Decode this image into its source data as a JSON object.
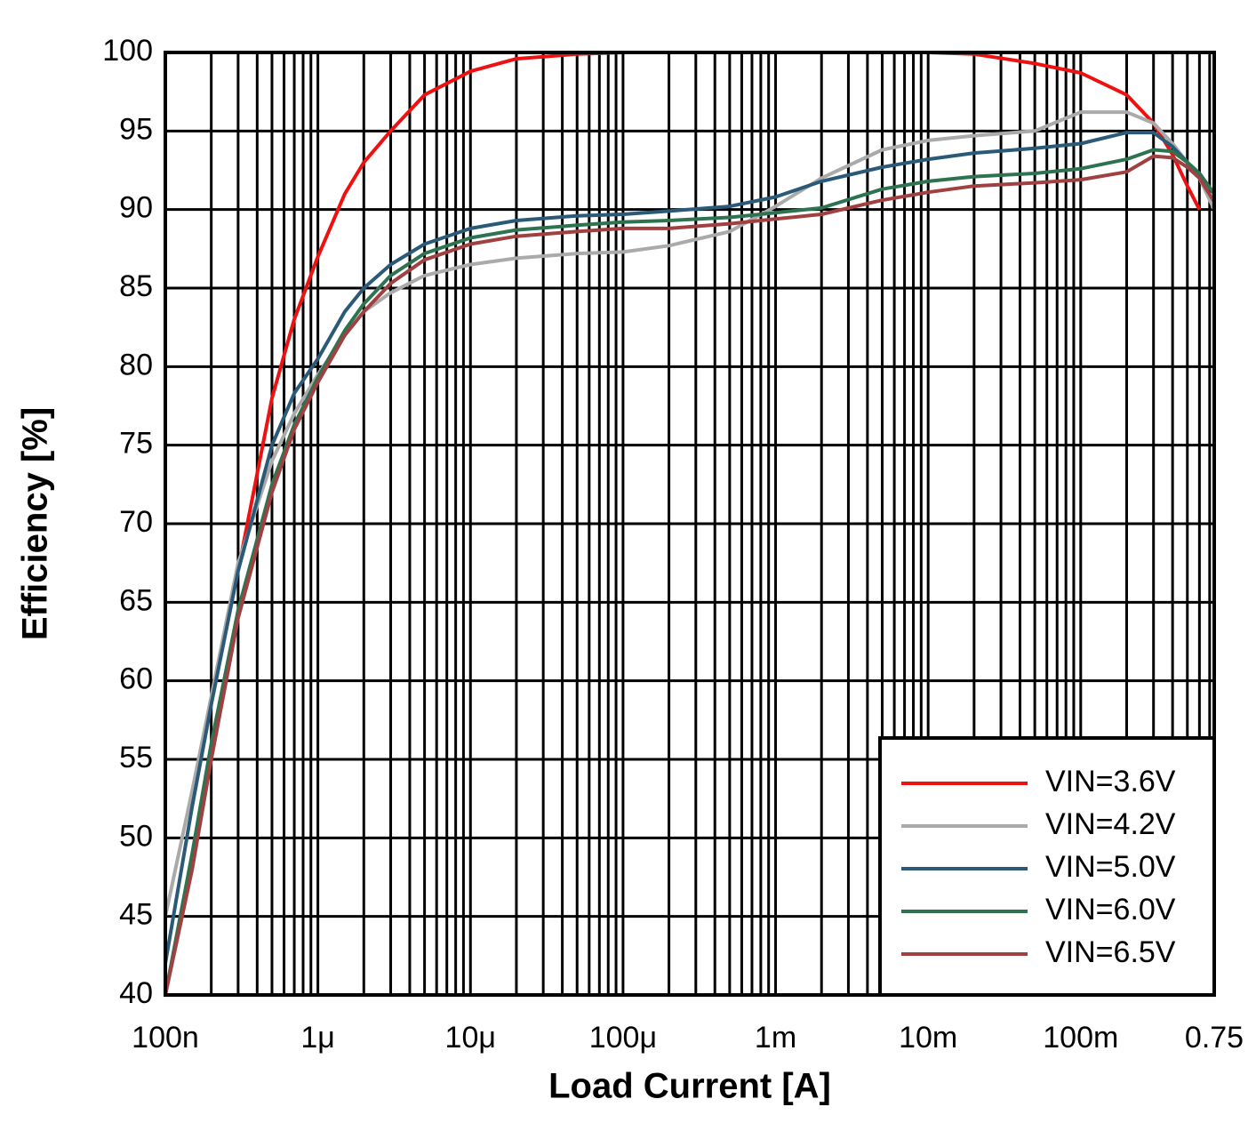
{
  "chart_data": {
    "type": "line",
    "log_x": true,
    "grid": true,
    "minor_grid": true,
    "xlabel": "Load Current [A]",
    "ylabel": "Efficiency [%]",
    "xlim": [
      1e-07,
      0.75
    ],
    "ylim": [
      40,
      100
    ],
    "xticks": [
      {
        "value": 1e-07,
        "label": "100n"
      },
      {
        "value": 1e-06,
        "label": "1μ"
      },
      {
        "value": 1e-05,
        "label": "10μ"
      },
      {
        "value": 0.0001,
        "label": "100μ"
      },
      {
        "value": 0.001,
        "label": "1m"
      },
      {
        "value": 0.01,
        "label": "10m"
      },
      {
        "value": 0.1,
        "label": "100m"
      },
      0.75
    ],
    "yticks": [
      40,
      45,
      50,
      55,
      60,
      65,
      70,
      75,
      80,
      85,
      90,
      95,
      100
    ],
    "legend": "lower-right",
    "x": [
      1e-07,
      1.5e-07,
      2e-07,
      3e-07,
      5e-07,
      7e-07,
      1e-06,
      1.5e-06,
      2e-06,
      3e-06,
      5e-06,
      1e-05,
      2e-05,
      5e-05,
      0.0001,
      0.0002,
      0.0005,
      0.001,
      0.002,
      0.005,
      0.01,
      0.02,
      0.05,
      0.1,
      0.2,
      0.3,
      0.4,
      0.5,
      0.6,
      0.75
    ],
    "series": [
      {
        "name": "VIN=3.6V",
        "color": "#ee1111",
        "values": [
          null,
          null,
          null,
          67,
          78,
          83,
          87,
          91,
          93,
          95,
          97.3,
          98.8,
          99.6,
          99.9,
          100,
          100,
          100,
          100,
          100,
          100,
          100,
          99.9,
          99.3,
          98.7,
          97.3,
          95.5,
          93.5,
          91.5,
          90,
          null
        ]
      },
      {
        "name": "VIN=4.2V",
        "color": "#aaaaaa",
        "values": [
          45,
          53,
          59,
          67.5,
          74,
          77,
          79.5,
          82,
          83.5,
          84.7,
          85.8,
          86.5,
          86.9,
          87.2,
          87.3,
          87.7,
          88.6,
          90.2,
          92,
          93.8,
          94.4,
          94.7,
          95,
          96.2,
          96.2,
          95.5,
          94.2,
          93,
          92,
          90
        ]
      },
      {
        "name": "VIN=5.0V",
        "color": "#2a5a78",
        "values": [
          42,
          52,
          58.5,
          67,
          75,
          78.3,
          80.5,
          83.5,
          85,
          86.5,
          87.8,
          88.8,
          89.3,
          89.6,
          89.7,
          89.9,
          90.2,
          90.8,
          91.8,
          92.7,
          93.2,
          93.6,
          93.9,
          94.2,
          94.9,
          94.9,
          94,
          93,
          92.3,
          91
        ]
      },
      {
        "name": "VIN=6.0V",
        "color": "#2e7350",
        "values": [
          40,
          49,
          56,
          64.5,
          72.5,
          76.3,
          79.3,
          82.3,
          84,
          85.8,
          87.2,
          88.2,
          88.7,
          89,
          89.2,
          89.3,
          89.5,
          89.8,
          90.1,
          91.3,
          91.8,
          92.1,
          92.3,
          92.6,
          93.2,
          93.8,
          93.7,
          93,
          92.3,
          91
        ]
      },
      {
        "name": "VIN=6.5V",
        "color": "#a04040",
        "values": [
          40,
          48,
          55,
          64,
          72,
          76,
          79,
          82,
          83.5,
          85.3,
          86.8,
          87.8,
          88.3,
          88.6,
          88.8,
          88.8,
          89.1,
          89.4,
          89.7,
          90.6,
          91.1,
          91.5,
          91.7,
          91.9,
          92.4,
          93.4,
          93.3,
          92.7,
          92,
          90.5
        ]
      }
    ]
  }
}
